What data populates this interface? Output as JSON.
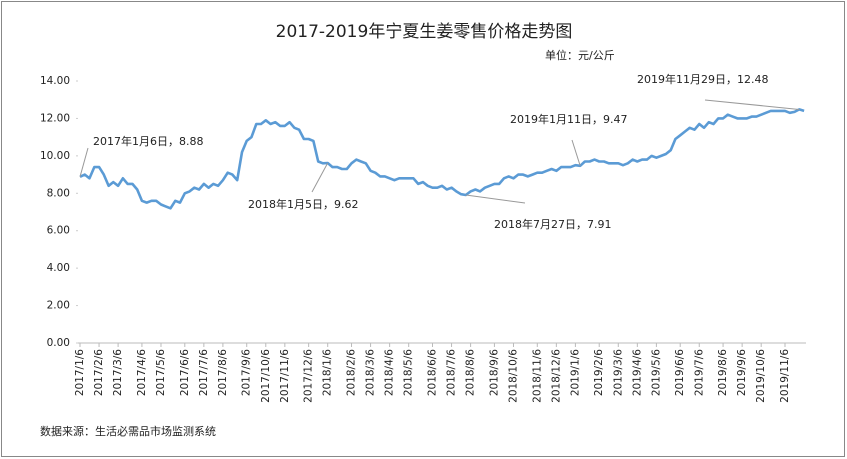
{
  "chart_data": {
    "type": "line",
    "title": "2017-2019年宁夏生姜零售价格走势图",
    "unit_label": "单位：元/公斤",
    "source": "数据来源：生活必需品市场监测系统",
    "color": "#5b9bd5",
    "ylim": [
      0,
      14
    ],
    "yticks": [
      {
        "value": 0,
        "label": "0.00"
      },
      {
        "value": 2,
        "label": "2.00"
      },
      {
        "value": 4,
        "label": "4.00"
      },
      {
        "value": 6,
        "label": "6.00"
      },
      {
        "value": 8,
        "label": "8.00"
      },
      {
        "value": 10,
        "label": "10.00"
      },
      {
        "value": 12,
        "label": "12.00"
      },
      {
        "value": 14,
        "label": "14.00"
      }
    ],
    "categories": [
      "2017/1/6",
      null,
      null,
      null,
      "2017/2/6",
      null,
      null,
      null,
      "2017/3/6",
      null,
      null,
      null,
      null,
      "2017/4/6",
      null,
      null,
      null,
      "2017/5/6",
      null,
      null,
      null,
      null,
      "2017/6/6",
      null,
      null,
      null,
      "2017/7/6",
      null,
      null,
      null,
      "2017/8/6",
      null,
      null,
      null,
      null,
      "2017/9/6",
      null,
      null,
      null,
      "2017/10/6",
      null,
      null,
      null,
      "2017/11/6",
      null,
      null,
      null,
      null,
      "2017/12/6",
      null,
      null,
      null,
      "2018/1/6",
      null,
      null,
      null,
      null,
      "2018/2/6",
      null,
      null,
      null,
      "2018/3/6",
      null,
      null,
      null,
      "2018/4/6",
      null,
      null,
      null,
      "2018/5/6",
      null,
      null,
      null,
      null,
      "2018/6/6",
      null,
      null,
      null,
      "2018/7/6",
      null,
      null,
      null,
      "2018/8/6",
      null,
      null,
      null,
      null,
      "2018/9/6",
      null,
      null,
      null,
      "2018/10/6",
      null,
      null,
      null,
      null,
      "2018/11/6",
      null,
      null,
      null,
      "2018/12/6",
      null,
      null,
      null,
      "2019/1/6",
      null,
      null,
      null,
      null,
      "2019/2/6",
      null,
      null,
      null,
      "2019/3/6",
      null,
      null,
      null,
      "2019/4/6",
      null,
      null,
      null,
      "2019/5/6",
      null,
      null,
      null,
      null,
      "2019/6/6",
      null,
      null,
      null,
      "2019/7/6",
      null,
      null,
      null,
      null,
      "2019/8/6",
      null,
      null,
      null,
      "2019/9/6",
      null,
      null,
      null,
      "2019/10/6",
      null,
      null,
      null,
      null,
      "2019/11/6",
      null,
      null,
      null,
      null
    ],
    "values": [
      8.88,
      9.0,
      8.8,
      9.4,
      9.4,
      9.0,
      8.4,
      8.6,
      8.4,
      8.8,
      8.5,
      8.5,
      8.2,
      7.6,
      7.5,
      7.6,
      7.6,
      7.4,
      7.3,
      7.2,
      7.6,
      7.5,
      8.0,
      8.1,
      8.3,
      8.2,
      8.5,
      8.3,
      8.5,
      8.4,
      8.7,
      9.1,
      9.0,
      8.7,
      10.2,
      10.8,
      11.0,
      11.7,
      11.7,
      11.9,
      11.7,
      11.8,
      11.6,
      11.6,
      11.8,
      11.5,
      11.4,
      10.9,
      10.9,
      10.8,
      9.7,
      9.6,
      9.62,
      9.4,
      9.4,
      9.3,
      9.3,
      9.6,
      9.8,
      9.7,
      9.6,
      9.2,
      9.1,
      8.9,
      8.9,
      8.8,
      8.7,
      8.8,
      8.8,
      8.8,
      8.8,
      8.5,
      8.6,
      8.4,
      8.3,
      8.3,
      8.4,
      8.2,
      8.3,
      8.1,
      7.95,
      7.91,
      8.1,
      8.2,
      8.1,
      8.3,
      8.4,
      8.5,
      8.5,
      8.8,
      8.9,
      8.8,
      9.0,
      9.0,
      8.9,
      9.0,
      9.1,
      9.1,
      9.2,
      9.3,
      9.2,
      9.4,
      9.4,
      9.4,
      9.5,
      9.47,
      9.7,
      9.7,
      9.8,
      9.7,
      9.7,
      9.6,
      9.6,
      9.6,
      9.5,
      9.6,
      9.8,
      9.7,
      9.8,
      9.8,
      10.0,
      9.9,
      10.0,
      10.1,
      10.3,
      10.9,
      11.1,
      11.3,
      11.5,
      11.4,
      11.7,
      11.5,
      11.8,
      11.7,
      12.0,
      12.0,
      12.2,
      12.1,
      12.0,
      12.0,
      12.0,
      12.1,
      12.1,
      12.2,
      12.3,
      12.4,
      12.4,
      12.4,
      12.4,
      12.3,
      12.35,
      12.48,
      12.4
    ],
    "value_labels": [
      "2017年1月6日，8.88",
      null,
      null,
      null,
      null,
      null,
      null,
      null,
      null,
      null,
      null,
      null,
      null,
      null,
      null,
      null,
      null,
      null,
      null,
      null,
      null,
      null,
      null,
      null,
      null,
      null,
      null,
      null,
      null,
      null,
      null,
      null,
      null,
      null,
      null,
      null,
      null,
      null,
      null,
      null,
      null,
      null,
      null,
      null,
      null,
      null,
      null,
      null,
      null,
      null,
      null,
      null,
      "2018年1月5日，9.62",
      null,
      null,
      null,
      null,
      null,
      null,
      null,
      null,
      null,
      null,
      null,
      null,
      null,
      null,
      null,
      null,
      null,
      null,
      null,
      null,
      null,
      null,
      null,
      null,
      null,
      null,
      null,
      null,
      "2018年7月27日，7.91",
      null,
      null,
      null,
      null,
      null,
      null,
      null,
      null,
      null,
      null,
      null,
      null,
      null,
      null,
      null,
      null,
      null,
      null,
      null,
      null,
      null,
      null,
      null,
      "2019年1月11日，9.47",
      null,
      null,
      null,
      null,
      null,
      null,
      null,
      null,
      null,
      null,
      null,
      null,
      null,
      null,
      null,
      null,
      null,
      null,
      null,
      null,
      null,
      null,
      null,
      null,
      null,
      null,
      null,
      null,
      null,
      null,
      null,
      null,
      null,
      null,
      null,
      null,
      null,
      null,
      null,
      null,
      null,
      null,
      null,
      null,
      null,
      "2019年11月29日，12.48",
      null
    ]
  }
}
